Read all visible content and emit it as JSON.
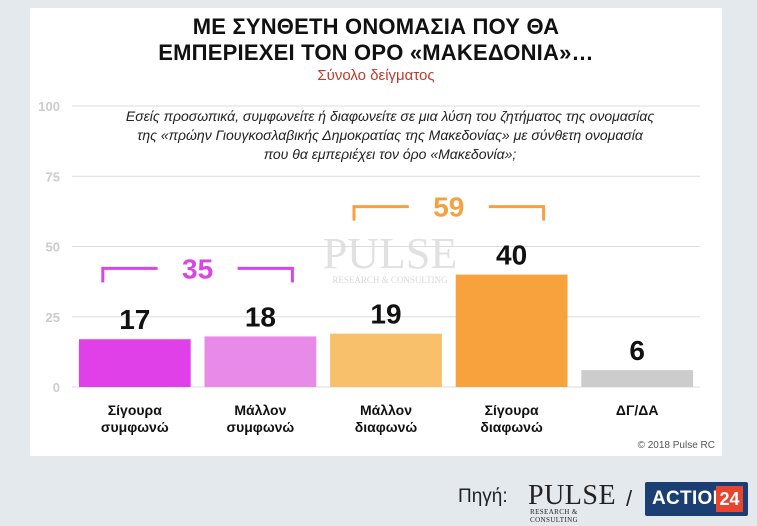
{
  "header": {
    "title_line1": "ΜΕ ΣΥΝΘΕΤΗ ΟΝΟΜΑΣΙΑ ΠΟΥ ΘΑ",
    "title_line2": "ΕΜΠΕΡΙΕΧΕΙ ΤΟΝ ΟΡΟ «ΜΑΚΕΔΟΝΙΑ»…",
    "subtitle": "Σύνολο δείγματος"
  },
  "question": {
    "line1": "Εσείς προσωπικά, συμφωνείτε ή διαφωνείτε σε μια λύση του ζητήματος της ονομασίας",
    "line2": "της «πρώην Γιουγκοσλαβικής Δημοκρατίας της Μακεδονίας» με σύνθετη ονομασία",
    "line3": "που θα εμπεριέχει τον όρο «Μακεδονία»;"
  },
  "watermark": {
    "word": "PULSE",
    "tag": "RESEARCH & CONSULTING"
  },
  "copyright": "© 2018 Pulse RC",
  "footer": {
    "source_label": "Πηγή:",
    "pulse_word": "PULSE",
    "pulse_tag": "RESEARCH & CONSULTING",
    "separator": "/",
    "action_text": "ACTION",
    "action_num": "24"
  },
  "chart_data": {
    "type": "bar",
    "categories": [
      [
        "Σίγουρα",
        "συμφωνώ"
      ],
      [
        "Μάλλον",
        "συμφωνώ"
      ],
      [
        "Μάλλον",
        "διαφωνώ"
      ],
      [
        "Σίγουρα",
        "διαφωνώ"
      ],
      [
        "ΔΓ/ΔΑ"
      ]
    ],
    "values": [
      17,
      18,
      19,
      40,
      6
    ],
    "colors": [
      "#e040e8",
      "#e88be8",
      "#f9c06b",
      "#f8a23d",
      "#cccccc"
    ],
    "ylim": [
      0,
      100
    ],
    "yticks": [
      0,
      25,
      50,
      75,
      100
    ],
    "grid": true,
    "brackets": [
      {
        "from": 0,
        "to": 1,
        "value": 35,
        "color": "#d946e3"
      },
      {
        "from": 2,
        "to": 3,
        "value": 59,
        "color": "#f5a142"
      }
    ]
  }
}
